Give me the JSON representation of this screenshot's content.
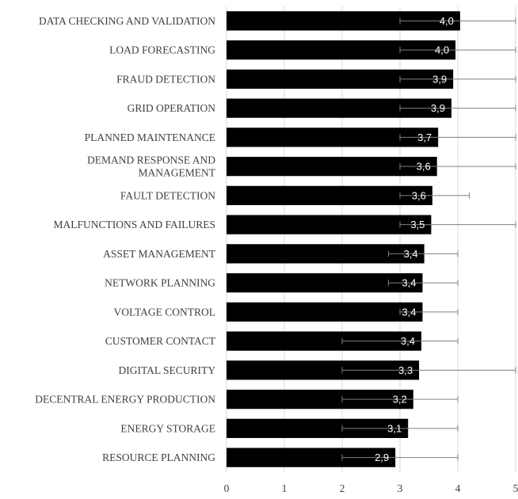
{
  "chart_data": {
    "type": "bar",
    "orientation": "horizontal",
    "title": "",
    "xlabel": "",
    "ylabel": "",
    "xlim": [
      0,
      5
    ],
    "x_ticks": [
      "0",
      "1",
      "2",
      "3",
      "4",
      "5"
    ],
    "grid": true,
    "colors": {
      "bar": "#000000",
      "gridline": "#d9d9d9",
      "error_bar": "#7f7f7f",
      "data_label": "#ffffff"
    },
    "categories": [
      [
        "DATA CHECKING AND VALIDATION"
      ],
      [
        "LOAD FORECASTING"
      ],
      [
        "FRAUD DETECTION"
      ],
      [
        "GRID OPERATION"
      ],
      [
        "PLANNED MAINTENANCE"
      ],
      [
        "DEMAND RESPONSE AND",
        "MANAGEMENT"
      ],
      [
        "FAULT DETECTION"
      ],
      [
        "MALFUNCTIONS AND FAILURES"
      ],
      [
        "ASSET MANAGEMENT"
      ],
      [
        "NETWORK PLANNING"
      ],
      [
        "VOLTAGE CONTROL"
      ],
      [
        "CUSTOMER CONTACT"
      ],
      [
        "DIGITAL SECURITY"
      ],
      [
        "DECENTRAL ENERGY PRODUCTION"
      ],
      [
        "ENERGY STORAGE"
      ],
      [
        "RESOURCE PLANNING"
      ]
    ],
    "values": [
      4.04,
      3.96,
      3.92,
      3.89,
      3.66,
      3.64,
      3.56,
      3.54,
      3.42,
      3.39,
      3.39,
      3.37,
      3.33,
      3.23,
      3.14,
      2.92
    ],
    "data_labels": [
      "4,0",
      "4,0",
      "3,9",
      "3,9",
      "3,7",
      "3,6",
      "3,6",
      "3,5",
      "3,4",
      "3,4",
      "3,4",
      "3,4",
      "3,3",
      "3,2",
      "3,1",
      "2,9"
    ],
    "error_bars": [
      [
        3.0,
        5.0
      ],
      [
        3.0,
        5.0
      ],
      [
        3.0,
        5.0
      ],
      [
        3.0,
        5.0
      ],
      [
        3.0,
        5.0
      ],
      [
        3.0,
        5.0
      ],
      [
        3.0,
        4.2
      ],
      [
        3.0,
        5.0
      ],
      [
        2.8,
        4.0
      ],
      [
        2.8,
        4.0
      ],
      [
        3.0,
        4.0
      ],
      [
        2.0,
        4.0
      ],
      [
        2.0,
        5.0
      ],
      [
        2.0,
        4.0
      ],
      [
        2.0,
        4.0
      ],
      [
        2.0,
        4.0
      ]
    ]
  }
}
